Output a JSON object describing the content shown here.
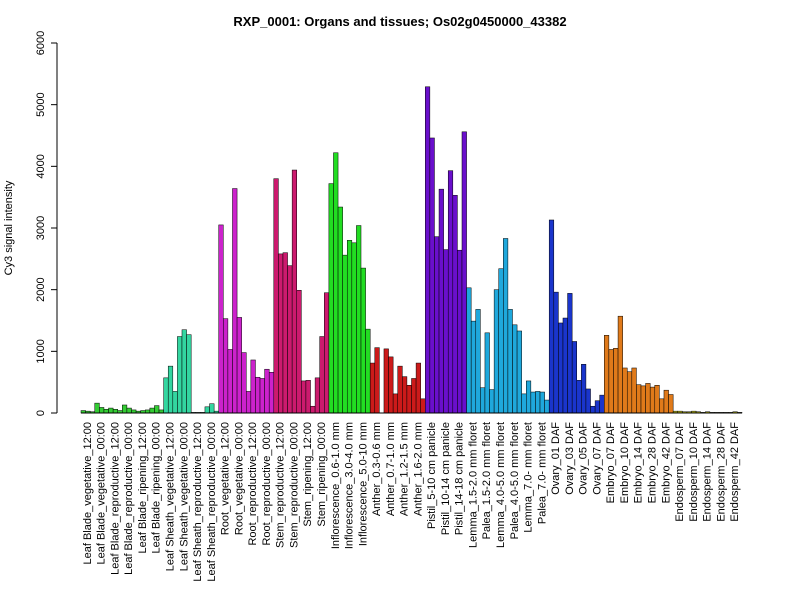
{
  "chart_data": {
    "type": "bar",
    "title": "RXP_0001: Organs and tissues; Os02g0450000_43382",
    "ylabel": "Cy3 signal intensity",
    "xlabel": "",
    "ylim": [
      0,
      6000
    ],
    "yticks": [
      0,
      1000,
      2000,
      3000,
      4000,
      5000,
      6000
    ],
    "grid": false,
    "groups": [
      {
        "label": "Leaf Blade_vegetative_12:00",
        "color": "#33cc33",
        "values": [
          40,
          30,
          20
        ]
      },
      {
        "label": "Leaf Blade_vegetative_00:00",
        "color": "#33cc33",
        "values": [
          160,
          90,
          60
        ]
      },
      {
        "label": "Leaf Blade_reproductive_12:00",
        "color": "#33cc33",
        "values": [
          80,
          60,
          40
        ]
      },
      {
        "label": "Leaf Blade_reproductive_00:00",
        "color": "#33cc33",
        "values": [
          130,
          80,
          50
        ]
      },
      {
        "label": "Leaf Blade_ripening_12:00",
        "color": "#33cc33",
        "values": [
          30,
          40,
          50
        ]
      },
      {
        "label": "Leaf Blade_ripening_00:00",
        "color": "#33cc33",
        "values": [
          80,
          120,
          50
        ]
      },
      {
        "label": "Leaf Sheath_vegetative_12:00",
        "color": "#33d6a0",
        "values": [
          570,
          760,
          350
        ]
      },
      {
        "label": "Leaf Sheath_vegetative_00:00",
        "color": "#33d6a0",
        "values": [
          1240,
          1350,
          1270
        ]
      },
      {
        "label": "Leaf Sheath_reproductive_12:00",
        "color": "#33d6a0",
        "values": [
          10,
          10,
          10
        ]
      },
      {
        "label": "Leaf Sheath_reproductive_00:00",
        "color": "#33d6a0",
        "values": [
          100,
          150,
          30
        ]
      },
      {
        "label": "Root_vegetative_12:00",
        "color": "#cc22cc",
        "values": [
          3050,
          1530,
          1030
        ]
      },
      {
        "label": "Root_vegetative_00:00",
        "color": "#cc22cc",
        "values": [
          3640,
          1550,
          980
        ]
      },
      {
        "label": "Root_reproductive_12:00",
        "color": "#cc22cc",
        "values": [
          350,
          860,
          580
        ]
      },
      {
        "label": "Root_reproductive_00:00",
        "color": "#cc22cc",
        "values": [
          560,
          710,
          660
        ]
      },
      {
        "label": "Stem_reproductive_12:00",
        "color": "#cc1a6e",
        "values": [
          3800,
          2580,
          2600
        ]
      },
      {
        "label": "Stem_reproductive_00:00",
        "color": "#cc1a6e",
        "values": [
          2390,
          3940,
          1990
        ]
      },
      {
        "label": "Stem_ripening_12:00",
        "color": "#cc1a6e",
        "values": [
          520,
          530,
          110
        ]
      },
      {
        "label": "Stem_ripening_00:00",
        "color": "#cc1a6e",
        "values": [
          570,
          1240,
          1950
        ]
      },
      {
        "label": "Inflorescence_0.6-1.0 mm",
        "color": "#22dd22",
        "values": [
          3720,
          4220,
          3340
        ]
      },
      {
        "label": "Inflorescence_3.0-4.0 mm",
        "color": "#22dd22",
        "values": [
          2560,
          2800,
          2760
        ]
      },
      {
        "label": "Inflorescence_5.0-10 mm",
        "color": "#22dd22",
        "values": [
          3040,
          2350,
          1360
        ]
      },
      {
        "label": "Anther_0.3-0.6 mm",
        "color": "#cc1a1a",
        "values": [
          810,
          1060,
          0
        ]
      },
      {
        "label": "Anther_0.7-1.0 mm",
        "color": "#cc1a1a",
        "values": [
          1040,
          910,
          310
        ]
      },
      {
        "label": "Anther_1.2-1.5 mm",
        "color": "#cc1a1a",
        "values": [
          760,
          590,
          450
        ]
      },
      {
        "label": "Anther_1.6-2.0 mm",
        "color": "#cc1a1a",
        "values": [
          560,
          810,
          230
        ]
      },
      {
        "label": "Pistil_5-10 cm panicle",
        "color": "#6a0fcc",
        "values": [
          5290,
          4460,
          2860
        ]
      },
      {
        "label": "Pistil_10-14 cm panicle",
        "color": "#6a0fcc",
        "values": [
          3630,
          2650,
          3930
        ]
      },
      {
        "label": "Pistil_14-18 cm panicle",
        "color": "#6a0fcc",
        "values": [
          3530,
          2640,
          4560
        ]
      },
      {
        "label": "Lemma_1.5-2.0 mm floret",
        "color": "#1fa8dc",
        "values": [
          2030,
          1490,
          1680
        ]
      },
      {
        "label": "Palea_1.5-2.0 mm floret",
        "color": "#1fa8dc",
        "values": [
          410,
          1300,
          380
        ]
      },
      {
        "label": "Lemma_4.0-5.0 mm floret",
        "color": "#1fa8dc",
        "values": [
          2000,
          2340,
          2830
        ]
      },
      {
        "label": "Palea_4.0-5.0 mm floret",
        "color": "#1fa8dc",
        "values": [
          1680,
          1430,
          1330
        ]
      },
      {
        "label": "Lemma_7.0- mm floret",
        "color": "#1fa8dc",
        "values": [
          310,
          520,
          340
        ]
      },
      {
        "label": "Palea_7.0- mm floret",
        "color": "#1fa8dc",
        "values": [
          350,
          340,
          210
        ]
      },
      {
        "label": "Ovary_01 DAF",
        "color": "#1a35cc",
        "values": [
          3130,
          1960,
          1460
        ]
      },
      {
        "label": "Ovary_03 DAF",
        "color": "#1a35cc",
        "values": [
          1540,
          1940,
          1160
        ]
      },
      {
        "label": "Ovary_05 DAF",
        "color": "#1a35cc",
        "values": [
          530,
          790,
          390
        ]
      },
      {
        "label": "Ovary_07 DAF",
        "color": "#1a35cc",
        "values": [
          110,
          200,
          290
        ]
      },
      {
        "label": "Embryo_07 DAF",
        "color": "#e07a1a",
        "values": [
          1260,
          1030,
          1050
        ]
      },
      {
        "label": "Embryo_10 DAF",
        "color": "#e07a1a",
        "values": [
          1570,
          730,
          670
        ]
      },
      {
        "label": "Embryo_14 DAF",
        "color": "#e07a1a",
        "values": [
          730,
          460,
          440
        ]
      },
      {
        "label": "Embryo_28 DAF",
        "color": "#e07a1a",
        "values": [
          480,
          420,
          450
        ]
      },
      {
        "label": "Embryo_42 DAF",
        "color": "#e07a1a",
        "values": [
          230,
          370,
          300
        ]
      },
      {
        "label": "Endosperm_07 DAF",
        "color": "#b8b81a",
        "values": [
          30,
          30,
          20
        ]
      },
      {
        "label": "Endosperm_10 DAF",
        "color": "#b8b81a",
        "values": [
          20,
          30,
          20
        ]
      },
      {
        "label": "Endosperm_14 DAF",
        "color": "#b8b81a",
        "values": [
          10,
          20,
          10
        ]
      },
      {
        "label": "Endosperm_28 DAF",
        "color": "#b8b81a",
        "values": [
          10,
          10,
          10
        ]
      },
      {
        "label": "Endosperm_42 DAF",
        "color": "#b8b81a",
        "values": [
          10,
          20,
          10
        ]
      }
    ]
  }
}
